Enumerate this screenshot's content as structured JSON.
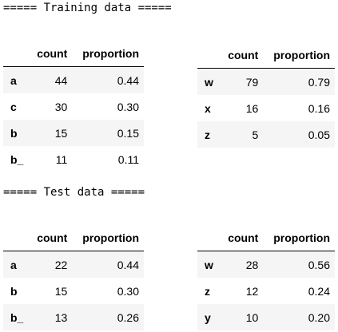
{
  "training": {
    "heading": "===== Training data =====",
    "left_table": {
      "columns": [
        "count",
        "proportion"
      ],
      "rows": [
        {
          "index": "a",
          "count": "44",
          "proportion": "0.44"
        },
        {
          "index": "c",
          "count": "30",
          "proportion": "0.30"
        },
        {
          "index": "b",
          "count": "15",
          "proportion": "0.15"
        },
        {
          "index": "b_",
          "count": "11",
          "proportion": "0.11"
        }
      ]
    },
    "right_table": {
      "columns": [
        "count",
        "proportion"
      ],
      "rows": [
        {
          "index": "w",
          "count": "79",
          "proportion": "0.79"
        },
        {
          "index": "x",
          "count": "16",
          "proportion": "0.16"
        },
        {
          "index": "z",
          "count": "5",
          "proportion": "0.05"
        }
      ]
    }
  },
  "test": {
    "heading": "===== Test data =====",
    "left_table": {
      "columns": [
        "count",
        "proportion"
      ],
      "rows": [
        {
          "index": "a",
          "count": "22",
          "proportion": "0.44"
        },
        {
          "index": "b",
          "count": "15",
          "proportion": "0.30"
        },
        {
          "index": "b_",
          "count": "13",
          "proportion": "0.26"
        }
      ]
    },
    "right_table": {
      "columns": [
        "count",
        "proportion"
      ],
      "rows": [
        {
          "index": "w",
          "count": "28",
          "proportion": "0.56"
        },
        {
          "index": "z",
          "count": "12",
          "proportion": "0.24"
        },
        {
          "index": "y",
          "count": "10",
          "proportion": "0.20"
        }
      ]
    }
  }
}
